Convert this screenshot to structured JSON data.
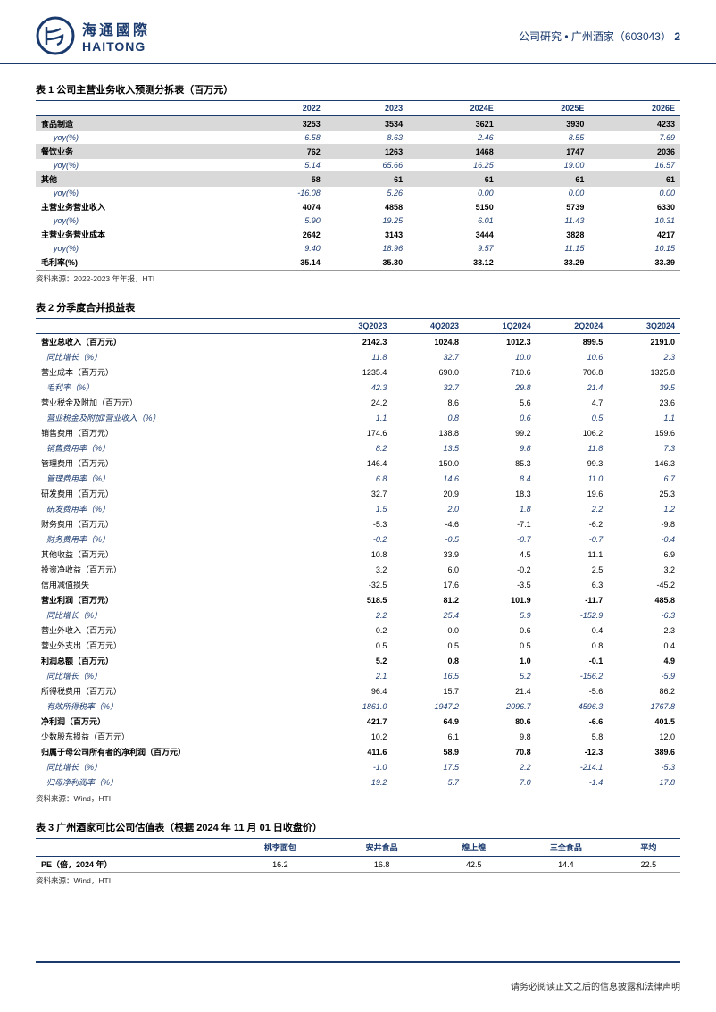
{
  "header": {
    "logo_cn": "海通國際",
    "logo_en": "HAITONG",
    "breadcrumb": "公司研究 • 广州酒家（603043）",
    "page_number": "2"
  },
  "table1": {
    "title": "表 1 公司主营业务收入预测分拆表（百万元）",
    "columns": [
      "",
      "2022",
      "2023",
      "2024E",
      "2025E",
      "2026E"
    ],
    "rows": [
      {
        "style": "shade",
        "cells": [
          "食品制造",
          "3253",
          "3534",
          "3621",
          "3930",
          "4233"
        ]
      },
      {
        "style": "italic",
        "cells": [
          "yoy(%)",
          "6.58",
          "8.63",
          "2.46",
          "8.55",
          "7.69"
        ]
      },
      {
        "style": "shade",
        "cells": [
          "餐饮业务",
          "762",
          "1263",
          "1468",
          "1747",
          "2036"
        ]
      },
      {
        "style": "italic",
        "cells": [
          "yoy(%)",
          "5.14",
          "65.66",
          "16.25",
          "19.00",
          "16.57"
        ]
      },
      {
        "style": "shade",
        "cells": [
          "其他",
          "58",
          "61",
          "61",
          "61",
          "61"
        ]
      },
      {
        "style": "italic",
        "cells": [
          "yoy(%)",
          "-16.08",
          "5.26",
          "0.00",
          "0.00",
          "0.00"
        ]
      },
      {
        "style": "bold",
        "cells": [
          "主营业务营业收入",
          "4074",
          "4858",
          "5150",
          "5739",
          "6330"
        ]
      },
      {
        "style": "italic",
        "cells": [
          "yoy(%)",
          "5.90",
          "19.25",
          "6.01",
          "11.43",
          "10.31"
        ]
      },
      {
        "style": "bold",
        "cells": [
          "主营业务营业成本",
          "2642",
          "3143",
          "3444",
          "3828",
          "4217"
        ]
      },
      {
        "style": "italic",
        "cells": [
          "yoy(%)",
          "9.40",
          "18.96",
          "9.57",
          "11.15",
          "10.15"
        ]
      },
      {
        "style": "bold border",
        "cells": [
          "毛利率(%)",
          "35.14",
          "35.30",
          "33.12",
          "33.29",
          "33.39"
        ]
      }
    ],
    "source": "资料来源：2022-2023 年年报，HTI"
  },
  "table2": {
    "title": "表 2 分季度合并损益表",
    "columns": [
      "",
      "3Q2023",
      "4Q2023",
      "1Q2024",
      "2Q2024",
      "3Q2024"
    ],
    "rows": [
      {
        "style": "bold",
        "cells": [
          "营业总收入（百万元）",
          "2142.3",
          "1024.8",
          "1012.3",
          "899.5",
          "2191.0"
        ]
      },
      {
        "style": "italic",
        "cells": [
          "同比增长（%）",
          "11.8",
          "32.7",
          "10.0",
          "10.6",
          "2.3"
        ]
      },
      {
        "style": "",
        "cells": [
          "营业成本（百万元）",
          "1235.4",
          "690.0",
          "710.6",
          "706.8",
          "1325.8"
        ]
      },
      {
        "style": "italic",
        "cells": [
          "毛利率（%）",
          "42.3",
          "32.7",
          "29.8",
          "21.4",
          "39.5"
        ]
      },
      {
        "style": "",
        "cells": [
          "营业税金及附加（百万元）",
          "24.2",
          "8.6",
          "5.6",
          "4.7",
          "23.6"
        ]
      },
      {
        "style": "italic",
        "cells": [
          "营业税金及附加/营业收入（%）",
          "1.1",
          "0.8",
          "0.6",
          "0.5",
          "1.1"
        ]
      },
      {
        "style": "",
        "cells": [
          "销售费用（百万元）",
          "174.6",
          "138.8",
          "99.2",
          "106.2",
          "159.6"
        ]
      },
      {
        "style": "italic",
        "cells": [
          "销售费用率（%）",
          "8.2",
          "13.5",
          "9.8",
          "11.8",
          "7.3"
        ]
      },
      {
        "style": "",
        "cells": [
          "管理费用（百万元）",
          "146.4",
          "150.0",
          "85.3",
          "99.3",
          "146.3"
        ]
      },
      {
        "style": "italic",
        "cells": [
          "管理费用率（%）",
          "6.8",
          "14.6",
          "8.4",
          "11.0",
          "6.7"
        ]
      },
      {
        "style": "",
        "cells": [
          "研发费用（百万元）",
          "32.7",
          "20.9",
          "18.3",
          "19.6",
          "25.3"
        ]
      },
      {
        "style": "italic",
        "cells": [
          "研发费用率（%）",
          "1.5",
          "2.0",
          "1.8",
          "2.2",
          "1.2"
        ]
      },
      {
        "style": "",
        "cells": [
          "财务费用（百万元）",
          "-5.3",
          "-4.6",
          "-7.1",
          "-6.2",
          "-9.8"
        ]
      },
      {
        "style": "italic",
        "cells": [
          "财务费用率（%）",
          "-0.2",
          "-0.5",
          "-0.7",
          "-0.7",
          "-0.4"
        ]
      },
      {
        "style": "",
        "cells": [
          "其他收益（百万元）",
          "10.8",
          "33.9",
          "4.5",
          "11.1",
          "6.9"
        ]
      },
      {
        "style": "",
        "cells": [
          "投资净收益（百万元）",
          "3.2",
          "6.0",
          "-0.2",
          "2.5",
          "3.2"
        ]
      },
      {
        "style": "",
        "cells": [
          "信用减值损失",
          "-32.5",
          "17.6",
          "-3.5",
          "6.3",
          "-45.2"
        ]
      },
      {
        "style": "bold",
        "cells": [
          "营业利润（百万元）",
          "518.5",
          "81.2",
          "101.9",
          "-11.7",
          "485.8"
        ]
      },
      {
        "style": "italic",
        "cells": [
          "同比增长（%）",
          "2.2",
          "25.4",
          "5.9",
          "-152.9",
          "-6.3"
        ]
      },
      {
        "style": "",
        "cells": [
          "营业外收入（百万元）",
          "0.2",
          "0.0",
          "0.6",
          "0.4",
          "2.3"
        ]
      },
      {
        "style": "",
        "cells": [
          "营业外支出（百万元）",
          "0.5",
          "0.5",
          "0.5",
          "0.8",
          "0.4"
        ]
      },
      {
        "style": "bold",
        "cells": [
          "利润总额（百万元）",
          "5.2",
          "0.8",
          "1.0",
          "-0.1",
          "4.9"
        ]
      },
      {
        "style": "italic",
        "cells": [
          "同比增长（%）",
          "2.1",
          "16.5",
          "5.2",
          "-156.2",
          "-5.9"
        ]
      },
      {
        "style": "",
        "cells": [
          "所得税费用（百万元）",
          "96.4",
          "15.7",
          "21.4",
          "-5.6",
          "86.2"
        ]
      },
      {
        "style": "italic",
        "cells": [
          "有效所得税率（%）",
          "1861.0",
          "1947.2",
          "2096.7",
          "4596.3",
          "1767.8"
        ]
      },
      {
        "style": "bold",
        "cells": [
          "净利润（百万元）",
          "421.7",
          "64.9",
          "80.6",
          "-6.6",
          "401.5"
        ]
      },
      {
        "style": "",
        "cells": [
          "少数股东损益（百万元）",
          "10.2",
          "6.1",
          "9.8",
          "5.8",
          "12.0"
        ]
      },
      {
        "style": "bold",
        "cells": [
          "归属于母公司所有者的净利润（百万元）",
          "411.6",
          "58.9",
          "70.8",
          "-12.3",
          "389.6"
        ]
      },
      {
        "style": "italic",
        "cells": [
          "同比增长（%）",
          "-1.0",
          "17.5",
          "2.2",
          "-214.1",
          "-5.3"
        ]
      },
      {
        "style": "italic border",
        "cells": [
          "归母净利润率（%）",
          "19.2",
          "5.7",
          "7.0",
          "-1.4",
          "17.8"
        ]
      }
    ],
    "source": "资料来源：Wind，HTI"
  },
  "table3": {
    "title": "表 3 广州酒家可比公司估值表（根据 2024 年 11 月 01 日收盘价）",
    "columns": [
      "",
      "桃李面包",
      "安井食品",
      "煌上煌",
      "三全食品",
      "平均"
    ],
    "row": [
      "PE（倍，2024 年）",
      "16.2",
      "16.8",
      "42.5",
      "14.4",
      "22.5"
    ],
    "source": "资料来源：Wind，HTI"
  },
  "footer": "请务必阅读正文之后的信息披露和法律声明"
}
